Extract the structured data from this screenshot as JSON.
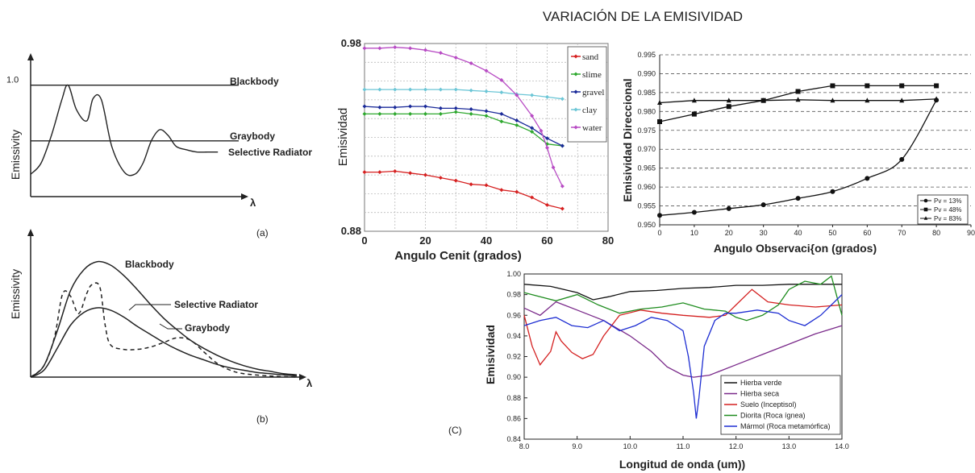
{
  "page_title": "VARIACIÓN DE LA EMISIVIDAD",
  "chart_data": [
    {
      "type": "line",
      "panel_label": "(a)",
      "ylabel": "Emissivity",
      "xlabel": "λ",
      "y_tick_labels": [
        "1.0"
      ],
      "ylim": [
        0,
        1.2
      ],
      "series": [
        {
          "name": "Blackbody",
          "x": [
            0,
            10
          ],
          "y": [
            1.0,
            1.0
          ]
        },
        {
          "name": "Graybody",
          "x": [
            0,
            10
          ],
          "y": [
            0.5,
            0.5
          ]
        },
        {
          "name": "Selective Radiator",
          "x": [
            0,
            0.5,
            1.0,
            1.5,
            1.8,
            2.2,
            2.7,
            3.0,
            3.4,
            3.9,
            4.5,
            5.0,
            5.4,
            5.8,
            6.2,
            6.6,
            7.0,
            7.5,
            8.0,
            8.5,
            9.0
          ],
          "y": [
            0.2,
            0.3,
            0.55,
            0.87,
            1.0,
            0.78,
            0.68,
            0.88,
            0.87,
            0.45,
            0.22,
            0.2,
            0.3,
            0.5,
            0.6,
            0.55,
            0.45,
            0.42,
            0.4,
            0.4,
            0.4
          ]
        }
      ]
    },
    {
      "type": "line",
      "panel_label": "(b)",
      "ylabel": "Emissivity",
      "xlabel": "λ",
      "ylim": [
        0,
        1.2
      ],
      "series": [
        {
          "name": "Blackbody",
          "x": [
            0,
            0.5,
            1,
            1.5,
            2,
            2.5,
            3,
            3.5,
            4,
            4.5,
            5,
            5.5,
            6,
            6.5,
            7,
            7.5,
            8,
            8.5,
            9,
            9.5,
            10
          ],
          "y": [
            0,
            0.1,
            0.4,
            0.75,
            0.93,
            1.0,
            0.97,
            0.88,
            0.76,
            0.63,
            0.51,
            0.41,
            0.32,
            0.25,
            0.19,
            0.14,
            0.1,
            0.07,
            0.05,
            0.03,
            0.02
          ]
        },
        {
          "name": "Selective Radiator",
          "x": [
            0,
            0.5,
            0.9,
            1.2,
            1.5,
            1.8,
            2.1,
            2.3,
            2.6,
            2.8,
            3.0,
            3.5,
            4.0,
            4.5,
            5.0,
            5.5,
            6.0,
            6.5,
            7.0,
            7.5,
            8.0,
            9.0,
            10
          ],
          "y": [
            0,
            0.1,
            0.35,
            0.72,
            0.7,
            0.55,
            0.72,
            0.8,
            0.78,
            0.45,
            0.28,
            0.24,
            0.24,
            0.26,
            0.3,
            0.34,
            0.32,
            0.22,
            0.12,
            0.06,
            0.03,
            0.01,
            0.0
          ]
        },
        {
          "name": "Graybody",
          "x": [
            0,
            0.5,
            1,
            1.5,
            2,
            2.5,
            3,
            3.5,
            4,
            4.5,
            5,
            5.5,
            6,
            6.5,
            7,
            7.5,
            8,
            8.5,
            9,
            9.5,
            10
          ],
          "y": [
            0,
            0.06,
            0.25,
            0.45,
            0.56,
            0.6,
            0.58,
            0.52,
            0.44,
            0.37,
            0.3,
            0.24,
            0.19,
            0.15,
            0.11,
            0.08,
            0.06,
            0.04,
            0.03,
            0.02,
            0.01
          ]
        }
      ]
    },
    {
      "type": "line",
      "xlabel": "Angulo Cenit (grados)",
      "ylabel": "Emisividad",
      "xlim": [
        0,
        80
      ],
      "ylim": [
        0.88,
        0.98
      ],
      "x_ticks": [
        0,
        20,
        40,
        60,
        80
      ],
      "y_tick_labels": [
        "0.98",
        "0.88"
      ],
      "legend_position": "top-right",
      "series": [
        {
          "name": "sand",
          "color": "#d62020",
          "x": [
            0,
            5,
            10,
            15,
            20,
            25,
            30,
            35,
            40,
            45,
            50,
            55,
            60,
            65
          ],
          "y": [
            0.9115,
            0.9115,
            0.912,
            0.911,
            0.91,
            0.9085,
            0.907,
            0.905,
            0.9045,
            0.902,
            0.901,
            0.898,
            0.894,
            0.892
          ]
        },
        {
          "name": "slime",
          "color": "#2ea82e",
          "x": [
            0,
            5,
            10,
            15,
            20,
            25,
            30,
            35,
            40,
            45,
            50,
            55,
            60,
            65
          ],
          "y": [
            0.9425,
            0.9425,
            0.9425,
            0.9425,
            0.9425,
            0.9425,
            0.9435,
            0.9425,
            0.9415,
            0.9385,
            0.9365,
            0.933,
            0.9265,
            0.9255
          ]
        },
        {
          "name": "gravel",
          "color": "#1a2a99",
          "x": [
            0,
            5,
            10,
            15,
            20,
            25,
            30,
            35,
            40,
            45,
            50,
            55,
            60,
            65
          ],
          "y": [
            0.9465,
            0.946,
            0.946,
            0.9465,
            0.9465,
            0.9455,
            0.9455,
            0.945,
            0.944,
            0.9425,
            0.939,
            0.935,
            0.9295,
            0.9255
          ]
        },
        {
          "name": "clay",
          "color": "#6cc6d6",
          "x": [
            0,
            5,
            10,
            15,
            20,
            25,
            30,
            35,
            40,
            45,
            50,
            55,
            60,
            65
          ],
          "y": [
            0.9555,
            0.9555,
            0.9555,
            0.9555,
            0.9555,
            0.9555,
            0.9555,
            0.955,
            0.9545,
            0.954,
            0.953,
            0.9525,
            0.9515,
            0.9505
          ]
        },
        {
          "name": "water",
          "color": "#b84cc4",
          "x": [
            0,
            5,
            10,
            15,
            20,
            25,
            30,
            35,
            40,
            45,
            50,
            55,
            58,
            60,
            62,
            65
          ],
          "y": [
            0.9775,
            0.9775,
            0.978,
            0.9775,
            0.9765,
            0.975,
            0.9725,
            0.9695,
            0.9655,
            0.9605,
            0.9525,
            0.9415,
            0.9335,
            0.9245,
            0.914,
            0.904
          ]
        }
      ]
    },
    {
      "type": "line",
      "xlabel": "Angulo Observaci{on (grados)",
      "ylabel": "Emisividad Direccional",
      "xlim": [
        0,
        90
      ],
      "ylim": [
        0.95,
        0.995
      ],
      "x_ticks": [
        0,
        10,
        20,
        30,
        40,
        50,
        60,
        70,
        80,
        90
      ],
      "y_ticks": [
        0.95,
        0.955,
        0.96,
        0.965,
        0.97,
        0.975,
        0.98,
        0.985,
        0.99,
        0.995
      ],
      "y_tick_labels": [
        "0.950",
        "0.955",
        "0.960",
        "0.965",
        "0.970",
        "0.975",
        "0.980",
        "0.985",
        "0.990",
        "0.995"
      ],
      "legend_position": "bottom-right",
      "series": [
        {
          "name": "Pv = 13%",
          "marker": "circle",
          "x": [
            0,
            10,
            20,
            30,
            40,
            50,
            60,
            70,
            80
          ],
          "y": [
            0.9525,
            0.9533,
            0.9543,
            0.9553,
            0.957,
            0.9588,
            0.9623,
            0.9673,
            0.983
          ]
        },
        {
          "name": "Pv = 48%",
          "marker": "square",
          "x": [
            0,
            10,
            20,
            30,
            40,
            50,
            60,
            70,
            80
          ],
          "y": [
            0.9773,
            0.9793,
            0.9813,
            0.9829,
            0.9853,
            0.9868,
            0.9868,
            0.9868,
            0.9868
          ]
        },
        {
          "name": "Pv = 83%",
          "marker": "triangle",
          "x": [
            0,
            10,
            20,
            30,
            40,
            50,
            60,
            70,
            80
          ],
          "y": [
            0.9823,
            0.9829,
            0.9829,
            0.9829,
            0.9831,
            0.9829,
            0.9829,
            0.9829,
            0.9833
          ]
        }
      ]
    },
    {
      "type": "line",
      "panel_label": "(C)",
      "xlabel": "Longitud de onda (um))",
      "ylabel": "Emisividad",
      "xlim": [
        8.0,
        14.0
      ],
      "ylim": [
        0.84,
        1.0
      ],
      "x_ticks": [
        8.0,
        9.0,
        10.0,
        11.0,
        12.0,
        13.0,
        14.0
      ],
      "x_tick_labels": [
        "8.0",
        "9.0",
        "10.0",
        "11.0",
        "12.0",
        "13.0",
        "14.0"
      ],
      "y_ticks": [
        0.84,
        0.86,
        0.88,
        0.9,
        0.92,
        0.94,
        0.96,
        0.98,
        1.0
      ],
      "y_tick_labels": [
        "0.84",
        "0.86",
        "0.88",
        "0.90",
        "0.92",
        "0.94",
        "0.96",
        "0.98",
        "1.00"
      ],
      "legend_position": "bottom-right",
      "series": [
        {
          "name": "Hierba verde",
          "color": "#111111",
          "x": [
            8.0,
            8.5,
            9.0,
            9.3,
            9.6,
            10.0,
            10.5,
            11.0,
            11.5,
            12.0,
            12.5,
            13.0,
            13.5,
            14.0
          ],
          "y": [
            0.99,
            0.988,
            0.982,
            0.975,
            0.978,
            0.983,
            0.984,
            0.986,
            0.987,
            0.989,
            0.989,
            0.99,
            0.99,
            0.99
          ]
        },
        {
          "name": "Hierba seca",
          "color": "#7a2a8a",
          "x": [
            8.0,
            8.3,
            8.6,
            9.0,
            9.5,
            10.0,
            10.4,
            10.7,
            11.0,
            11.2,
            11.5,
            12.0,
            12.5,
            13.0,
            13.5,
            14.0
          ],
          "y": [
            0.967,
            0.96,
            0.973,
            0.965,
            0.955,
            0.94,
            0.925,
            0.91,
            0.902,
            0.9,
            0.902,
            0.912,
            0.922,
            0.932,
            0.942,
            0.95
          ]
        },
        {
          "name": "Suelo (Inceptisol)",
          "color": "#d42020",
          "x": [
            8.0,
            8.15,
            8.3,
            8.5,
            8.6,
            8.7,
            8.9,
            9.1,
            9.3,
            9.5,
            9.8,
            10.2,
            10.6,
            11.0,
            11.5,
            11.8,
            12.0,
            12.3,
            12.6,
            13.0,
            13.5,
            14.0
          ],
          "y": [
            0.96,
            0.93,
            0.912,
            0.925,
            0.944,
            0.935,
            0.924,
            0.918,
            0.922,
            0.94,
            0.96,
            0.965,
            0.962,
            0.96,
            0.958,
            0.96,
            0.97,
            0.985,
            0.973,
            0.97,
            0.968,
            0.97
          ]
        },
        {
          "name": "Diorita (Roca ígnea)",
          "color": "#1e8c1e",
          "x": [
            8.0,
            8.3,
            8.6,
            9.0,
            9.4,
            9.8,
            10.2,
            10.6,
            11.0,
            11.4,
            11.8,
            12.0,
            12.2,
            12.5,
            12.8,
            13.0,
            13.3,
            13.6,
            13.8,
            14.0
          ],
          "y": [
            0.982,
            0.978,
            0.974,
            0.98,
            0.97,
            0.962,
            0.966,
            0.968,
            0.972,
            0.966,
            0.964,
            0.958,
            0.955,
            0.96,
            0.97,
            0.985,
            0.993,
            0.99,
            0.998,
            0.96
          ]
        },
        {
          "name": "Mármol (Roca metamórfica)",
          "color": "#1e2ed2",
          "x": [
            8.0,
            8.3,
            8.6,
            8.9,
            9.2,
            9.5,
            9.8,
            10.1,
            10.4,
            10.7,
            11.0,
            11.1,
            11.2,
            11.25,
            11.3,
            11.4,
            11.6,
            11.8,
            12.0,
            12.4,
            12.8,
            13.0,
            13.3,
            13.6,
            14.0
          ],
          "y": [
            0.95,
            0.955,
            0.958,
            0.95,
            0.948,
            0.955,
            0.945,
            0.95,
            0.958,
            0.955,
            0.945,
            0.92,
            0.885,
            0.86,
            0.88,
            0.93,
            0.955,
            0.962,
            0.962,
            0.965,
            0.962,
            0.955,
            0.95,
            0.96,
            0.98
          ]
        }
      ]
    }
  ]
}
